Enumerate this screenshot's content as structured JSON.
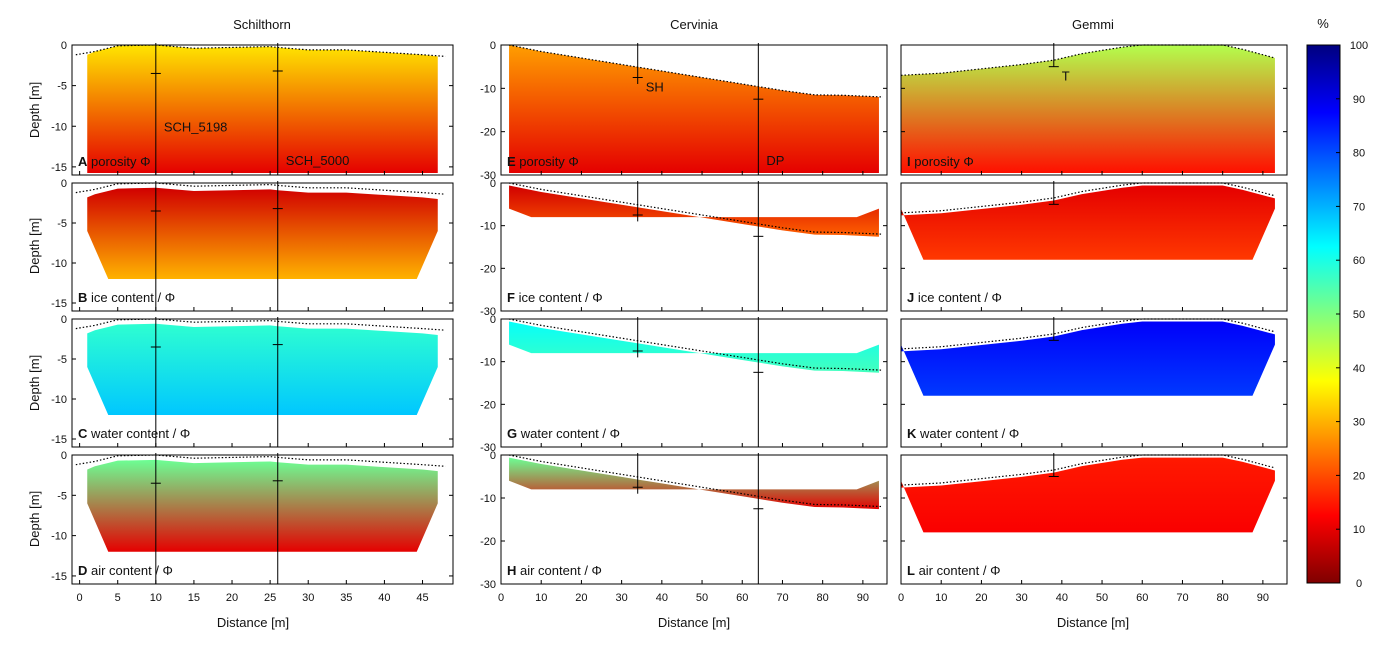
{
  "sites": [
    "Schilthorn",
    "Cervinia",
    "Gemmi"
  ],
  "ylabel": "Depth [m]",
  "xlabel": "Distance [m]",
  "colorbar": {
    "unit": "%",
    "min": 0,
    "max": 100,
    "ticks": [
      0,
      10,
      20,
      30,
      40,
      50,
      60,
      70,
      80,
      90,
      100
    ],
    "colormap": [
      "#7f0000",
      "#ff0000",
      "#ff7f00",
      "#ffff00",
      "#80ff80",
      "#00ffff",
      "#007fff",
      "#0000ff",
      "#00007f"
    ]
  },
  "chart_data": [
    {
      "type": "heatmap",
      "site": "Schilthorn",
      "xlim": [
        -1,
        49
      ],
      "ylim": [
        -16,
        0
      ],
      "xticks": [
        0,
        5,
        10,
        15,
        20,
        25,
        30,
        35,
        40,
        45
      ],
      "yticks": [
        0,
        -5,
        -10,
        -15
      ],
      "ytick_labels": [
        "0",
        "-5",
        "-10",
        "-15"
      ],
      "x_range": [
        1,
        47
      ],
      "surface": [
        [
          -0.5,
          -1.2
        ],
        [
          2,
          -0.8
        ],
        [
          5,
          -0.1
        ],
        [
          10,
          0
        ],
        [
          15,
          -0.4
        ],
        [
          20,
          -0.3
        ],
        [
          25,
          -0.2
        ],
        [
          26,
          -0.3
        ],
        [
          30,
          -0.6
        ],
        [
          35,
          -0.6
        ],
        [
          40,
          -0.9
        ],
        [
          45,
          -1.2
        ],
        [
          48,
          -1.4
        ]
      ],
      "boreholes": [
        {
          "name": "SCH_5198",
          "x": 10,
          "tick_depth": -3.5
        },
        {
          "name": "SCH_5000",
          "x": 26,
          "tick_depth": -3.2
        }
      ],
      "panels": [
        {
          "letter": "A",
          "label": "porosity Φ",
          "depth_to": -16,
          "top_value": 35,
          "bottom_value": 10,
          "full": true
        },
        {
          "letter": "B",
          "label": "ice content / Φ",
          "depth_to": -12,
          "top_value": 8,
          "bottom_value": 30
        },
        {
          "letter": "C",
          "label": "water content / Φ",
          "depth_to": -12,
          "top_value": 58,
          "bottom_value": 68
        },
        {
          "letter": "D",
          "label": "air content / Φ",
          "depth_to": -12,
          "top_value": 52,
          "bottom_value": 10
        }
      ]
    },
    {
      "type": "heatmap",
      "site": "Cervinia",
      "xlim": [
        0,
        96
      ],
      "ylim": [
        -30,
        0
      ],
      "xticks": [
        0,
        10,
        20,
        30,
        40,
        50,
        60,
        70,
        80,
        90
      ],
      "yticks": [
        0,
        -10,
        -20,
        -30
      ],
      "ytick_labels": [
        "0",
        "-10",
        "-20",
        "-30"
      ],
      "x_range": [
        2,
        94
      ],
      "surface": [
        [
          2,
          0
        ],
        [
          10,
          -1.5
        ],
        [
          20,
          -3
        ],
        [
          30,
          -4.5
        ],
        [
          40,
          -6
        ],
        [
          50,
          -7.5
        ],
        [
          60,
          -9
        ],
        [
          70,
          -10.5
        ],
        [
          78,
          -11.5
        ],
        [
          85,
          -11.6
        ],
        [
          95,
          -12
        ]
      ],
      "boreholes": [
        {
          "name": "SH",
          "x": 34,
          "tick_depth": -7.5
        },
        {
          "name": "DP",
          "x": 64,
          "tick_depth": -12.5
        }
      ],
      "panels": [
        {
          "letter": "E",
          "label": "porosity Φ",
          "depth_to": -30,
          "top_value": 28,
          "bottom_value": 10,
          "full": true
        },
        {
          "letter": "F",
          "label": "ice content / Φ",
          "depth_to": -8,
          "top_value": 8,
          "bottom_value": 22
        },
        {
          "letter": "G",
          "label": "water content / Φ",
          "depth_to": -8,
          "top_value": 62,
          "bottom_value": 56
        },
        {
          "letter": "H",
          "label": "air content / Φ",
          "depth_to": -8,
          "top_value": 52,
          "bottom_value": 10
        }
      ]
    },
    {
      "type": "heatmap",
      "site": "Gemmi",
      "xlim": [
        0,
        96
      ],
      "ylim": [
        -30,
        0
      ],
      "xticks": [
        0,
        10,
        20,
        30,
        40,
        50,
        60,
        70,
        80,
        90
      ],
      "yticks": [
        0,
        -10,
        -20,
        -30
      ],
      "ytick_labels": [
        "",
        "",
        "",
        ""
      ],
      "x_range": [
        0,
        93
      ],
      "surface": [
        [
          0,
          -7
        ],
        [
          10,
          -6.5
        ],
        [
          20,
          -5.5
        ],
        [
          30,
          -4.5
        ],
        [
          38,
          -3.5
        ],
        [
          45,
          -2
        ],
        [
          55,
          -0.5
        ],
        [
          60,
          0
        ],
        [
          70,
          0
        ],
        [
          80,
          0
        ],
        [
          85,
          -1
        ],
        [
          93,
          -3
        ]
      ],
      "boreholes": [
        {
          "name": "T",
          "x": 38,
          "tick_depth": -5
        }
      ],
      "panels": [
        {
          "letter": "I",
          "label": "porosity Φ",
          "depth_to": -30,
          "top_value": 45,
          "bottom_value": 14,
          "full": true
        },
        {
          "letter": "J",
          "label": "ice content / Φ",
          "depth_to": -18,
          "top_value": 10,
          "bottom_value": 18
        },
        {
          "letter": "K",
          "label": "water content / Φ",
          "depth_to": -18,
          "top_value": 88,
          "bottom_value": 82
        },
        {
          "letter": "L",
          "label": "air content / Φ",
          "depth_to": -18,
          "top_value": 15,
          "bottom_value": 12
        }
      ]
    }
  ]
}
